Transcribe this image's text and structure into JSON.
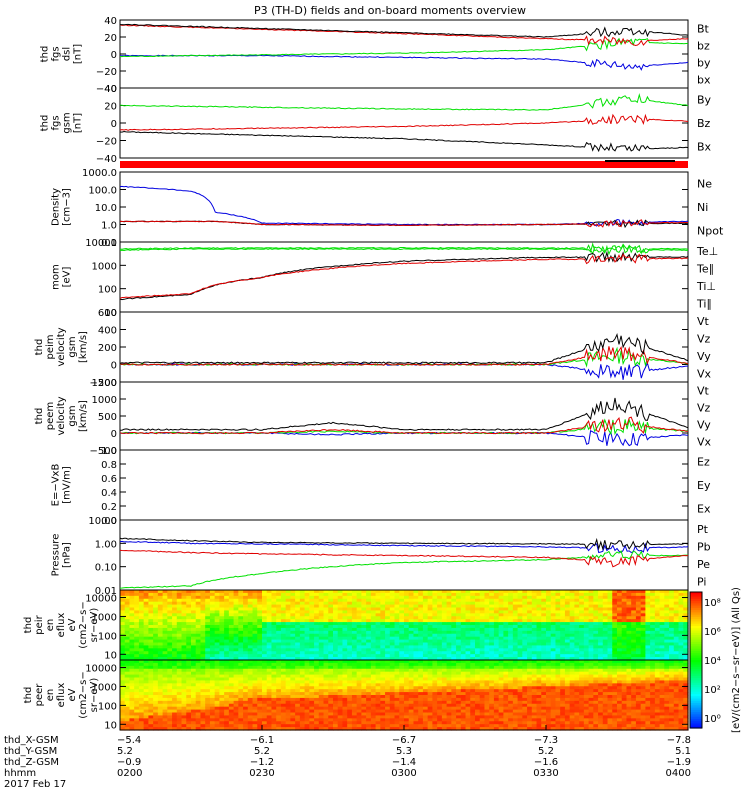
{
  "title": "P3 (TH-D) fields and on-board moments overview",
  "colors": {
    "black": "#000000",
    "red": "#e00000",
    "green": "#00e000",
    "blue": "#0000e0",
    "bar": "#ff0000"
  },
  "panels": [
    {
      "id": "fgs-dsl",
      "ylabel": [
        "thd",
        "fgs",
        "dsl",
        "[nT]"
      ],
      "ticks": [
        "40",
        "20",
        "0",
        "−20",
        "−40"
      ],
      "tick_values": [
        40,
        20,
        0,
        -20,
        -40
      ],
      "ylim": [
        -40,
        40
      ],
      "legend": [
        {
          "text": "Bt",
          "color": "#000000"
        },
        {
          "text": "bz",
          "color": "#e00000"
        },
        {
          "text": "by",
          "color": "#00e000"
        },
        {
          "text": "bx",
          "color": "#0000e0"
        }
      ]
    },
    {
      "id": "fgs-gsm",
      "ylabel": [
        "thd",
        "fgs",
        "gsm",
        "[nT]"
      ],
      "ticks": [
        "40",
        "20",
        "0",
        "−20",
        "−40"
      ],
      "tick_values": [
        40,
        20,
        0,
        -20,
        -40
      ],
      "ylim": [
        -40,
        40
      ],
      "legend": [
        {
          "text": "By",
          "color": "#00e000"
        },
        {
          "text": "Bz",
          "color": "#e00000"
        },
        {
          "text": "Bx",
          "color": "#000000"
        }
      ]
    },
    {
      "id": "density",
      "ylabel": [
        "Density",
        "[cm−3]"
      ],
      "ticks": [
        "1000.0",
        "100.0",
        "10.0",
        "1.0",
        "0.1"
      ],
      "tick_values": [
        1000,
        100,
        10,
        1,
        0.1
      ],
      "scale": "log",
      "ylim": [
        0.1,
        1000
      ],
      "legend": [
        {
          "text": "Ne",
          "color": "#e00000"
        },
        {
          "text": "Ni",
          "color": "#000000"
        },
        {
          "text": "Npot",
          "color": "#0000e0"
        }
      ]
    },
    {
      "id": "temperature",
      "ylabel": [
        "mom",
        "[eV]"
      ],
      "ticks": [
        "10000",
        "1000",
        "100",
        "10"
      ],
      "tick_values": [
        10000,
        1000,
        100,
        10
      ],
      "scale": "log",
      "ylim": [
        10,
        10000
      ],
      "legend": [
        {
          "text": "Te⊥",
          "color": "#e00000"
        },
        {
          "text": "Te∥",
          "color": "#000000"
        },
        {
          "text": "Ti⊥",
          "color": "#00e000"
        },
        {
          "text": "Ti∥",
          "color": "#00e000"
        }
      ]
    },
    {
      "id": "peim",
      "ylabel": [
        "thd",
        "peim",
        "velocity",
        "gsm",
        "[km/s]"
      ],
      "ticks": [
        "600",
        "400",
        "200",
        "0",
        "−200"
      ],
      "tick_values": [
        600,
        400,
        200,
        0,
        -200
      ],
      "ylim": [
        -200,
        600
      ],
      "legend": [
        {
          "text": "Vt",
          "color": "#000000"
        },
        {
          "text": "Vz",
          "color": "#e00000"
        },
        {
          "text": "Vy",
          "color": "#00e000"
        },
        {
          "text": "Vx",
          "color": "#0000e0"
        }
      ]
    },
    {
      "id": "peem",
      "ylabel": [
        "thd",
        "peem",
        "velocity",
        "gsm",
        "[km/s]"
      ],
      "ticks": [
        "1500",
        "1000",
        "500",
        "0",
        "−500"
      ],
      "tick_values": [
        1500,
        1000,
        500,
        0,
        -500
      ],
      "ylim": [
        -500,
        1500
      ],
      "legend": [
        {
          "text": "Vt",
          "color": "#000000"
        },
        {
          "text": "Vz",
          "color": "#e00000"
        },
        {
          "text": "Vy",
          "color": "#00e000"
        },
        {
          "text": "Vx",
          "color": "#0000e0"
        }
      ]
    },
    {
      "id": "efield",
      "ylabel": [
        "E=−VxB",
        "[mV/m]"
      ],
      "ticks": [
        "1.0",
        "0.8",
        "0.6",
        "0.4",
        "0.2",
        "0.0"
      ],
      "tick_values": [
        1.0,
        0.8,
        0.6,
        0.4,
        0.2,
        0.0
      ],
      "ylim": [
        0,
        1
      ],
      "legend": [
        {
          "text": "Ez",
          "color": "#e00000"
        },
        {
          "text": "Ey",
          "color": "#00e000"
        },
        {
          "text": "Ex",
          "color": "#0000e0"
        }
      ]
    },
    {
      "id": "pressure",
      "ylabel": [
        "Pressure",
        "[nPa]"
      ],
      "ticks": [
        "10.00",
        "1.00",
        "0.10",
        "0.01"
      ],
      "tick_values": [
        10,
        1,
        0.1,
        0.01
      ],
      "scale": "log",
      "ylim": [
        0.01,
        10
      ],
      "legend": [
        {
          "text": "Pt",
          "color": "#000000"
        },
        {
          "text": "Pb",
          "color": "#e00000"
        },
        {
          "text": "Pe",
          "color": "#00e000"
        },
        {
          "text": "Pi",
          "color": "#0000e0"
        }
      ]
    },
    {
      "id": "peir",
      "ylabel": [
        "thd",
        "peir",
        "en",
        "eflux",
        "eV",
        "(cm2−s−",
        "sr−eV)"
      ],
      "ticks": [
        "10000",
        "1000",
        "100",
        "10"
      ],
      "tick_values": [
        10000,
        1000,
        100,
        10
      ],
      "scale": "log",
      "ylim": [
        5,
        25000
      ]
    },
    {
      "id": "peer",
      "ylabel": [
        "thd",
        "peer",
        "en",
        "eflux",
        "eV",
        "(cm2−s−",
        "sr−eV)"
      ],
      "ticks": [
        "10000",
        "1000",
        "100",
        "10"
      ],
      "tick_values": [
        10000,
        1000,
        100,
        10
      ],
      "scale": "log",
      "ylim": [
        5,
        25000
      ]
    }
  ],
  "colorbar": {
    "label": "[eV/(cm2−s−sr−eV)] (All Qs)",
    "ticks": [
      "10⁸",
      "10⁶",
      "10⁴",
      "10²",
      "10⁰"
    ],
    "tick_values": [
      8,
      6,
      4,
      2,
      0
    ]
  },
  "xaxis": {
    "row_labels": [
      "thd_X-GSM",
      "thd_Y-GSM",
      "thd_Z-GSM",
      "hhmm",
      "2017 Feb 17"
    ],
    "columns": [
      {
        "x": "−5.4",
        "y": "5.2",
        "z": "−0.9",
        "hhmm": "0200"
      },
      {
        "x": "−6.1",
        "y": "5.2",
        "z": "−1.2",
        "hhmm": "0230"
      },
      {
        "x": "−6.7",
        "y": "5.3",
        "z": "−1.4",
        "hhmm": "0300"
      },
      {
        "x": "−7.3",
        "y": "5.2",
        "z": "−1.6",
        "hhmm": "0330"
      },
      {
        "x": "−7.8",
        "y": "5.1",
        "z": "−1.9",
        "hhmm": "0400"
      }
    ]
  },
  "chart_data": {
    "type": "line",
    "title": "P3 (TH-D) fields and on-board moments overview",
    "x_time_range": [
      "0200",
      "0400"
    ],
    "panels": [
      {
        "id": "fgs-dsl",
        "x": [
          "0200",
          "0230",
          "0300",
          "0330",
          "0348",
          "0400"
        ],
        "series": [
          {
            "name": "Bt",
            "values": [
              35,
              30,
              25,
              20,
              28,
              22
            ]
          },
          {
            "name": "bz",
            "values": [
              34,
              29,
              24,
              18,
              15,
              18
            ]
          },
          {
            "name": "by",
            "values": [
              -3,
              -1,
              1,
              5,
              14,
              12
            ]
          },
          {
            "name": "bx",
            "values": [
              -2,
              -2,
              -4,
              -6,
              -15,
              -10
            ]
          }
        ]
      },
      {
        "id": "fgs-gsm",
        "x": [
          "0200",
          "0230",
          "0300",
          "0330",
          "0348",
          "0400"
        ],
        "series": [
          {
            "name": "By",
            "values": [
              20,
              18,
              16,
              15,
              28,
              20
            ]
          },
          {
            "name": "Bz",
            "values": [
              -8,
              -6,
              -4,
              0,
              5,
              2
            ]
          },
          {
            "name": "Bx",
            "values": [
              -10,
              -14,
              -18,
              -25,
              -30,
              -28
            ]
          }
        ]
      },
      {
        "id": "density",
        "x": [
          "0200",
          "0215",
          "0220",
          "0230",
          "0300",
          "0330",
          "0400"
        ],
        "series": [
          {
            "name": "Ne",
            "values": [
              1.5,
              1.5,
              1.5,
              1.0,
              0.9,
              1.0,
              1.3
            ]
          },
          {
            "name": "Ni",
            "values": [
              1.5,
              1.5,
              1.5,
              1.0,
              0.9,
              1.0,
              1.2
            ]
          },
          {
            "name": "Npot",
            "values": [
              150,
              80,
              5,
              1.2,
              1.0,
              1.0,
              1.5
            ]
          }
        ]
      },
      {
        "id": "temperature",
        "x": [
          "0200",
          "0215",
          "0230",
          "0300",
          "0330",
          "0400"
        ],
        "series": [
          {
            "name": "Te⊥",
            "values": [
              40,
              60,
              300,
              1200,
              1800,
              2000
            ]
          },
          {
            "name": "Te∥",
            "values": [
              35,
              55,
              300,
              1500,
              2200,
              2300
            ]
          },
          {
            "name": "Ti⊥",
            "values": [
              5000,
              5500,
              5500,
              5600,
              5500,
              5000
            ]
          },
          {
            "name": "Ti∥",
            "values": [
              4500,
              5000,
              5000,
              5000,
              5000,
              4500
            ]
          }
        ]
      },
      {
        "id": "peim",
        "x": [
          "0200",
          "0230",
          "0300",
          "0330",
          "0345",
          "0400"
        ],
        "series": [
          {
            "name": "Vt",
            "values": [
              20,
              20,
              20,
              20,
              300,
              50
            ]
          },
          {
            "name": "Vz",
            "values": [
              0,
              0,
              0,
              0,
              150,
              10
            ]
          },
          {
            "name": "Vy",
            "values": [
              0,
              0,
              0,
              0,
              100,
              10
            ]
          },
          {
            "name": "Vx",
            "values": [
              0,
              0,
              0,
              0,
              -100,
              -20
            ]
          }
        ]
      },
      {
        "id": "peem",
        "x": [
          "0200",
          "0230",
          "0245",
          "0300",
          "0330",
          "0345",
          "0400"
        ],
        "series": [
          {
            "name": "Vt",
            "values": [
              100,
              100,
              300,
              100,
              100,
              900,
              150
            ]
          },
          {
            "name": "Vz",
            "values": [
              0,
              0,
              100,
              0,
              0,
              300,
              50
            ]
          },
          {
            "name": "Vy",
            "values": [
              0,
              0,
              50,
              0,
              0,
              200,
              50
            ]
          },
          {
            "name": "Vx",
            "values": [
              0,
              0,
              -50,
              0,
              0,
              -200,
              -50
            ]
          }
        ]
      },
      {
        "id": "pressure",
        "x": [
          "0200",
          "0215",
          "0230",
          "0300",
          "0330",
          "0345",
          "0400"
        ],
        "series": [
          {
            "name": "Pt",
            "values": [
              1.6,
              1.3,
              1.1,
              1.0,
              0.95,
              0.9,
              0.95
            ]
          },
          {
            "name": "Pb",
            "values": [
              0.5,
              0.4,
              0.35,
              0.3,
              0.25,
              0.15,
              0.3
            ]
          },
          {
            "name": "Pe",
            "values": [
              0.012,
              0.015,
              0.05,
              0.15,
              0.2,
              0.3,
              0.3
            ]
          },
          {
            "name": "Pi",
            "values": [
              1.2,
              1.0,
              0.95,
              0.8,
              0.7,
              0.6,
              0.7
            ]
          }
        ]
      }
    ]
  }
}
